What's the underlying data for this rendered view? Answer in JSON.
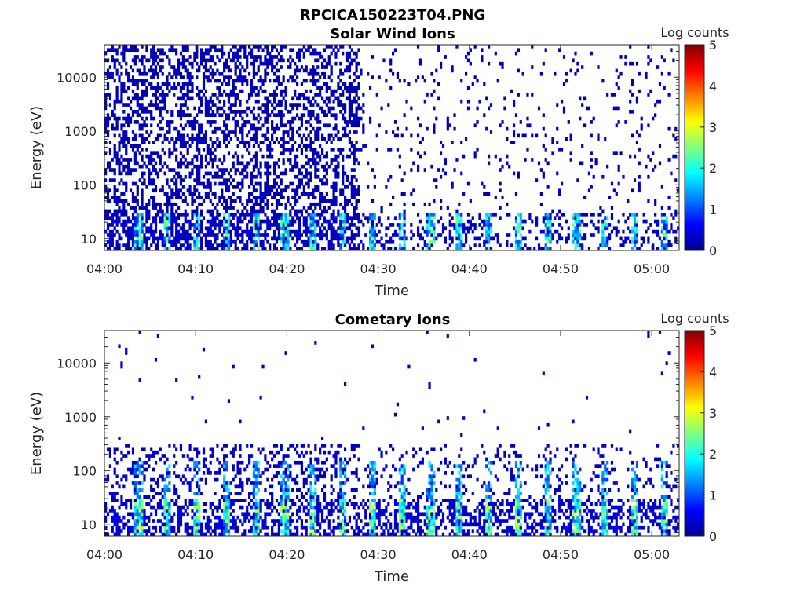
{
  "figure_title": "RPCICA150223T04.PNG",
  "colors": {
    "colormap": "jet",
    "axis": "#262626",
    "background": "#ffffff"
  },
  "chart_data": [
    {
      "type": "heatmap",
      "title": "Solar Wind Ions",
      "xlabel": "Time",
      "ylabel": "Energy (eV)",
      "y_scale": "log",
      "ylim": [
        6,
        40000
      ],
      "xlim": [
        "04:00",
        "05:03"
      ],
      "x_ticks": [
        "04:00",
        "04:10",
        "04:20",
        "04:30",
        "04:40",
        "04:50",
        "05:00"
      ],
      "x_tick_minutes": [
        0,
        10,
        20,
        30,
        40,
        50,
        60
      ],
      "y_ticks": [
        "10",
        "100",
        "1000",
        "10000"
      ],
      "y_tick_values": [
        10,
        100,
        1000,
        10000
      ],
      "colorbar": {
        "label": "Log counts",
        "ticks": [
          "0",
          "1",
          "2",
          "3",
          "4",
          "5"
        ],
        "range": [
          0,
          5
        ]
      },
      "pattern": "dense low counts (~0.3) across all energies 04:00-04:28, sparse speckle above 100 eV after 04:30, bursts of 1-2.5 at 8-30 eV recurring every ~3 min"
    },
    {
      "type": "heatmap",
      "title": "Cometary Ions",
      "xlabel": "Time",
      "ylabel": "Energy (eV)",
      "y_scale": "log",
      "ylim": [
        6,
        40000
      ],
      "xlim": [
        "04:00",
        "05:03"
      ],
      "x_ticks": [
        "04:00",
        "04:10",
        "04:20",
        "04:30",
        "04:40",
        "04:50",
        "05:00"
      ],
      "x_tick_minutes": [
        0,
        10,
        20,
        30,
        40,
        50,
        60
      ],
      "y_ticks": [
        "10",
        "100",
        "1000",
        "10000"
      ],
      "y_tick_values": [
        10,
        100,
        1000,
        10000
      ],
      "colorbar": {
        "label": "Log counts",
        "ticks": [
          "0",
          "1",
          "2",
          "3",
          "4",
          "5"
        ],
        "range": [
          0,
          5
        ]
      },
      "pattern": "counts concentrated below 300 eV, periodic bursts reaching 2-3 log counts near 10-30 eV every ~3 min, few isolated pixels at higher energies"
    }
  ]
}
